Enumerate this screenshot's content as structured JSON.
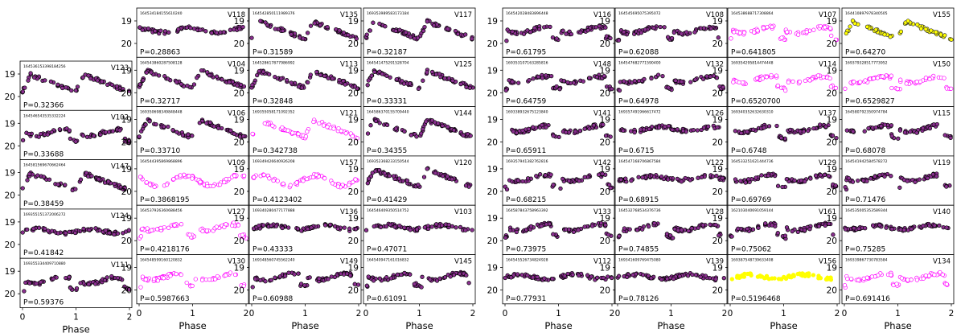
{
  "figure": {
    "xlabel": "Phase",
    "ytick_labels": [
      "19",
      "20"
    ],
    "xtick_labels": [
      "0",
      "1",
      "2"
    ]
  },
  "marker_colors": {
    "dark_face": "#8a2f8f",
    "dark_edge": "#000000",
    "pink_edge": "#ff00ff",
    "yellow_face": "#ffff00"
  },
  "chart_data": {
    "type": "scatter",
    "xlim": [
      0,
      2
    ],
    "y_axis": "19 at top, 20 below (magnitude-like, inverted)",
    "panels": [
      {
        "id": "164536153398184256",
        "name": "V123",
        "period": "P=0.32366",
        "style": "dark",
        "shape": "a"
      },
      {
        "id": "164546543535332224",
        "name": "V102",
        "period": "P=0.33688",
        "style": "dark",
        "shape": "b"
      },
      {
        "id": "164581569670662464",
        "name": "V147",
        "period": "P=0.38459",
        "style": "dark",
        "shape": "a"
      },
      {
        "id": "169355151372006272",
        "name": "V124",
        "period": "P=0.41842",
        "style": "dark",
        "shape": "c"
      },
      {
        "id": "169355334409710880",
        "name": "V111",
        "period": "P=0.59376",
        "style": "dark",
        "shape": "b"
      },
      {
        "id": "164534184155610240",
        "name": "V118",
        "period": "P=0.28863",
        "style": "dark",
        "shape": "c"
      },
      {
        "id": "164543860287508128",
        "name": "V104",
        "period": "P=0.32717",
        "style": "dark",
        "shape": "a"
      },
      {
        "id": "169350698349848448",
        "name": "V106",
        "period": "P=0.33710",
        "style": "dark",
        "shape": "a"
      },
      {
        "id": "164544395869868896",
        "name": "V109",
        "period": "P=0.3868195",
        "style": "pink",
        "shape": "d"
      },
      {
        "id": "164537926360688456",
        "name": "V127",
        "period": "P=0.4218176",
        "style": "pink",
        "shape": "b"
      },
      {
        "id": "164548599160120832",
        "name": "V130",
        "period": "P=0.5987663",
        "style": "pink",
        "shape": "b"
      },
      {
        "id": "164542850111989376",
        "name": "V135",
        "period": "P=0.31589",
        "style": "dark",
        "shape": "a"
      },
      {
        "id": "164528617877986992",
        "name": "V113",
        "period": "P=0.32848",
        "style": "dark",
        "shape": "a"
      },
      {
        "id": "169355058171092352",
        "name": "V121",
        "period": "P=0.342738",
        "style": "pink",
        "shape": "a"
      },
      {
        "id": "169349426640926208",
        "name": "V157",
        "period": "P=0.4123402",
        "style": "pink",
        "shape": "d"
      },
      {
        "id": "169340280477177888",
        "name": "V136",
        "period": "P=0.43333",
        "style": "dark",
        "shape": "c"
      },
      {
        "id": "169348560745562240",
        "name": "V149",
        "period": "P=0.60988",
        "style": "dark",
        "shape": "b"
      },
      {
        "id": "169353989583173184",
        "name": "V117",
        "period": "P=0.32187",
        "style": "dark",
        "shape": "a"
      },
      {
        "id": "164541475291528704",
        "name": "V125",
        "period": "P=0.33331",
        "style": "dark",
        "shape": "a"
      },
      {
        "id": "164586370155709440",
        "name": "V144",
        "period": "P=0.34355",
        "style": "dark",
        "shape": "a"
      },
      {
        "id": "169352368233150544",
        "name": "V120",
        "period": "P=0.41429",
        "style": "dark",
        "shape": "a"
      },
      {
        "id": "164546409350514752",
        "name": "V103",
        "period": "P=0.47071",
        "style": "dark",
        "shape": "c"
      },
      {
        "id": "164540947161016832",
        "name": "V145",
        "period": "P=0.61091",
        "style": "dark",
        "shape": "b"
      },
      {
        "id": "164542028483896448",
        "name": "V116",
        "period": "P=0.61795",
        "style": "dark",
        "shape": "b"
      },
      {
        "id": "169353107163285816",
        "name": "V148",
        "period": "P=0.64759",
        "style": "dark",
        "shape": "b"
      },
      {
        "id": "169338932675123840",
        "name": "V141",
        "period": "P=0.65911",
        "style": "dark",
        "shape": "b"
      },
      {
        "id": "169357941382762816",
        "name": "V142",
        "period": "P=0.68215",
        "style": "dark",
        "shape": "b"
      },
      {
        "id": "164587843758963392",
        "name": "V133",
        "period": "P=0.73975",
        "style": "dark",
        "shape": "b"
      },
      {
        "id": "164545526734824928",
        "name": "V112",
        "period": "P=0.77931",
        "style": "dark",
        "shape": "c"
      },
      {
        "id": "164545695075395072",
        "name": "V108",
        "period": "P=0.62088",
        "style": "dark",
        "shape": "b"
      },
      {
        "id": "164547682771590400",
        "name": "V132",
        "period": "P=0.64978",
        "style": "dark",
        "shape": "b"
      },
      {
        "id": "169357491966617472",
        "name": "V126",
        "period": "P=0.6715",
        "style": "dark",
        "shape": "c"
      },
      {
        "id": "164547168706867584",
        "name": "V122",
        "period": "P=0.68915",
        "style": "dark",
        "shape": "c"
      },
      {
        "id": "164532768534376736",
        "name": "V128",
        "period": "P=0.74855",
        "style": "dark",
        "shape": "b"
      },
      {
        "id": "169341609769475080",
        "name": "V139",
        "period": "P=0.78126",
        "style": "dark",
        "shape": "c"
      },
      {
        "id": "164538688717308864",
        "name": "V107",
        "period": "P=0.641805",
        "style": "pink",
        "shape": "b"
      },
      {
        "id": "169354295814474448",
        "name": "V114",
        "period": "P=0.6520700",
        "style": "pink",
        "shape": "b"
      },
      {
        "id": "169340352632630310",
        "name": "V137",
        "period": "P=0.6748",
        "style": "dark",
        "shape": "b"
      },
      {
        "id": "164533251621444736",
        "name": "V129",
        "period": "P=0.69769",
        "style": "dark",
        "shape": "b"
      },
      {
        "id": "162103040691059144",
        "name": "V161",
        "period": "P=0.75062",
        "style": "dark",
        "shape": "b"
      },
      {
        "id": "169387548739633408",
        "name": "V156",
        "period": "P=0.5196468",
        "style": "yellow",
        "shape": "c"
      },
      {
        "id": "164410897978340505",
        "name": "V155",
        "period": "P=0.64270",
        "style": "yellowdark",
        "shape": "a"
      },
      {
        "id": "169379328517773952",
        "name": "V150",
        "period": "P=0.6529827",
        "style": "pink",
        "shape": "b"
      },
      {
        "id": "164580792350974784",
        "name": "V115",
        "period": "P=0.68078",
        "style": "dark",
        "shape": "b"
      },
      {
        "id": "164541942584578272",
        "name": "V119",
        "period": "P=0.71476",
        "style": "dark",
        "shape": "b"
      },
      {
        "id": "164535005353589344",
        "name": "V140",
        "period": "P=0.75285",
        "style": "dark",
        "shape": "c"
      },
      {
        "id": "169339867730783584",
        "name": "V134",
        "period": "P=0.691416",
        "style": "pink",
        "shape": "b"
      }
    ]
  }
}
